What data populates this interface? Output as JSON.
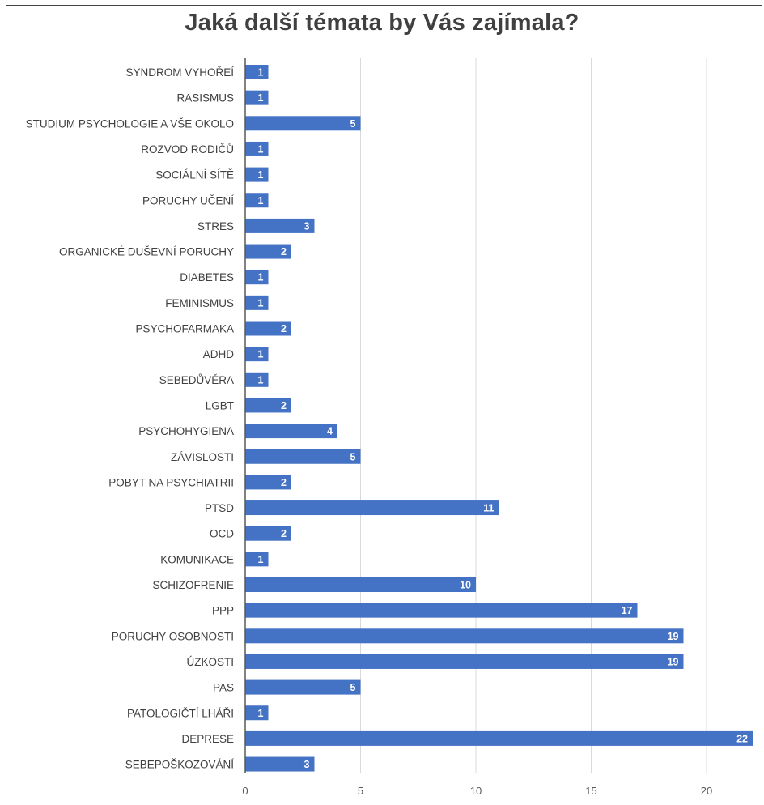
{
  "chart_data": {
    "type": "bar",
    "orientation": "horizontal",
    "title": "Jaká další témata by Vás zajímala?",
    "xlabel": "",
    "ylabel": "",
    "xlim": [
      0,
      22
    ],
    "x_ticks": [
      "0",
      "5",
      "10",
      "15",
      "20"
    ],
    "grid": true,
    "legend": "none",
    "bar_color": "#4472C4",
    "categories": [
      "SYNDROM VYHOŘEÍ",
      "RASISMUS",
      "STUDIUM PSYCHOLOGIE A VŠE OKOLO",
      "ROZVOD RODIČŮ",
      "SOCIÁLNÍ SÍTĚ",
      "PORUCHY UČENÍ",
      "STRES",
      "ORGANICKÉ DUŠEVNÍ PORUCHY",
      "DIABETES",
      "FEMINISMUS",
      "PSYCHOFARMAKA",
      "ADHD",
      "SEBEDŮVĚRA",
      "LGBT",
      "PSYCHOHYGIENA",
      "ZÁVISLOSTI",
      "POBYT NA PSYCHIATRII",
      "PTSD",
      "OCD",
      "KOMUNIKACE",
      "SCHIZOFRENIE",
      "PPP",
      "PORUCHY OSOBNOSTI",
      "ÚZKOSTI",
      "PAS",
      "PATOLOGIČTÍ LHÁŘI",
      "DEPRESE",
      "SEBEPOŠKOZOVÁNÍ"
    ],
    "values": [
      1,
      1,
      5,
      1,
      1,
      1,
      3,
      2,
      1,
      1,
      2,
      1,
      1,
      2,
      4,
      5,
      2,
      11,
      2,
      1,
      10,
      17,
      19,
      19,
      5,
      1,
      22,
      3
    ]
  }
}
